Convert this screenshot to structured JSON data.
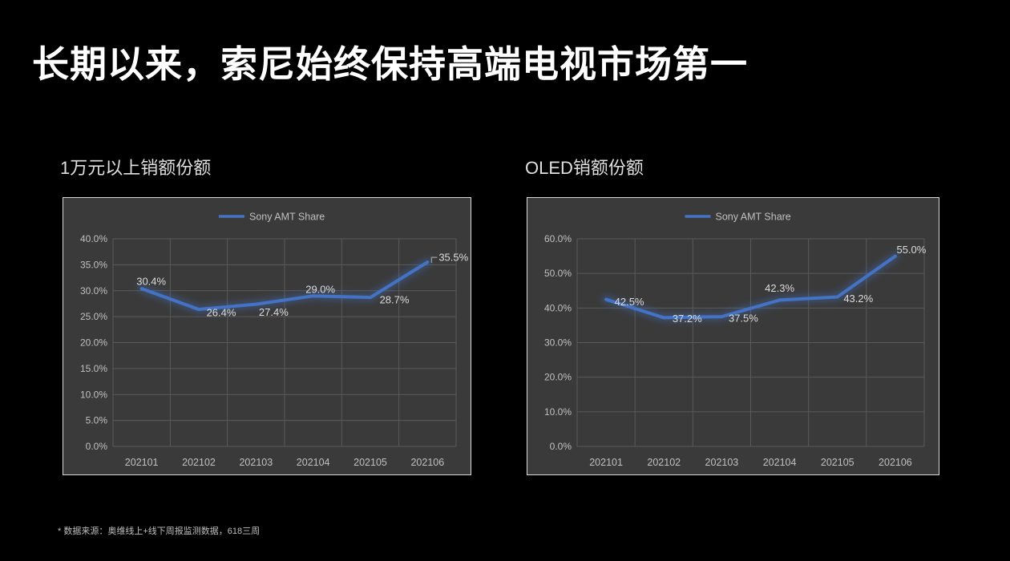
{
  "slide": {
    "title": "长期以来，索尼始终保持高端电视市场第一",
    "footnote": "* 数据来源：奥维线上+线下周报监测数据，618三周"
  },
  "colors": {
    "background": "#000000",
    "title_text": "#ffffff",
    "subtitle_text": "#e0e0e0",
    "footnote_text": "#bfbfbf",
    "chart_background": "#3a3a3a",
    "chart_border": "#d9d9d9",
    "gridline": "#5a5a5a",
    "axis_text": "#c0c0c0",
    "data_label_text": "#dcdcdc",
    "series_line": "#4472c4",
    "callout_line": "#9f9f9f"
  },
  "chart_data": [
    {
      "type": "line",
      "title": "1万元以上销额份额",
      "legend_position": "top",
      "grid": true,
      "categories": [
        "202101",
        "202102",
        "202103",
        "202104",
        "202105",
        "202106"
      ],
      "series": [
        {
          "name": "Sony AMT Share",
          "values": [
            30.4,
            26.4,
            27.4,
            29.0,
            28.7,
            35.5
          ]
        }
      ],
      "data_labels": [
        "30.4%",
        "26.4%",
        "27.4%",
        "29.0%",
        "28.7%",
        "35.5%"
      ],
      "xlabel": "",
      "ylabel": "",
      "ylim": [
        0,
        40
      ],
      "ytick_labels": [
        "0.0%",
        "5.0%",
        "10.0%",
        "15.0%",
        "20.0%",
        "25.0%",
        "30.0%",
        "35.0%",
        "40.0%"
      ]
    },
    {
      "type": "line",
      "title": "OLED销额份额",
      "legend_position": "top",
      "grid": true,
      "categories": [
        "202101",
        "202102",
        "202103",
        "202104",
        "202105",
        "202106"
      ],
      "series": [
        {
          "name": "Sony AMT Share",
          "values": [
            42.5,
            37.2,
            37.5,
            42.3,
            43.2,
            55.0
          ]
        }
      ],
      "data_labels": [
        "42.5%",
        "37.2%",
        "37.5%",
        "42.3%",
        "43.2%",
        "55.0%"
      ],
      "xlabel": "",
      "ylabel": "",
      "ylim": [
        0,
        60
      ],
      "ytick_labels": [
        "0.0%",
        "10.0%",
        "20.0%",
        "30.0%",
        "40.0%",
        "50.0%",
        "60.0%"
      ]
    }
  ]
}
